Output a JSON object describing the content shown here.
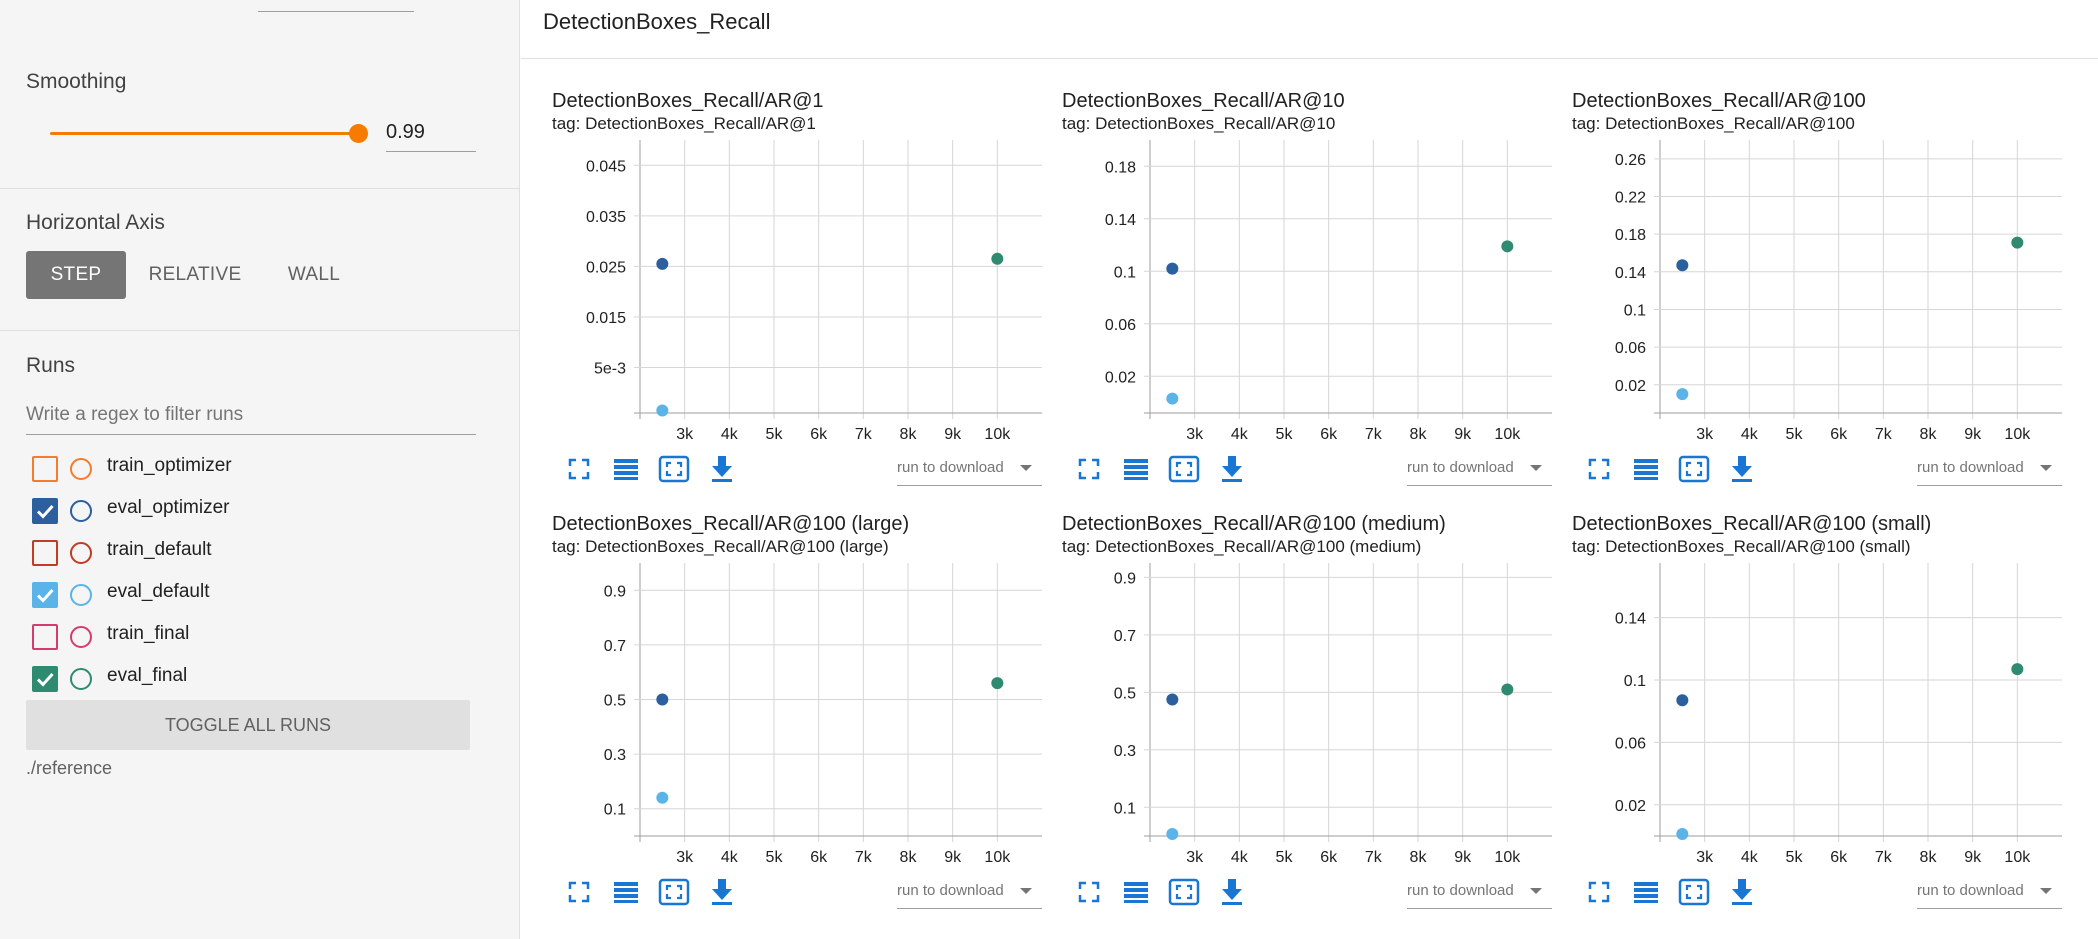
{
  "sidebar": {
    "smoothing": {
      "label": "Smoothing",
      "value": "0.99",
      "fraction": 0.99
    },
    "horizontal_axis": {
      "label": "Horizontal Axis",
      "options": [
        "STEP",
        "RELATIVE",
        "WALL"
      ],
      "selected": "STEP"
    },
    "runs": {
      "label": "Runs",
      "filter_placeholder": "Write a regex to filter runs",
      "items": [
        {
          "label": "train_optimizer",
          "checked": false,
          "color": "#f57c2b"
        },
        {
          "label": "eval_optimizer",
          "checked": true,
          "color": "#2c5f9e"
        },
        {
          "label": "train_default",
          "checked": false,
          "color": "#c23b22"
        },
        {
          "label": "eval_default",
          "checked": true,
          "color": "#5ab4e8"
        },
        {
          "label": "train_final",
          "checked": false,
          "color": "#d63b6f"
        },
        {
          "label": "eval_final",
          "checked": true,
          "color": "#2e8b72"
        }
      ],
      "toggle_all_label": "TOGGLE ALL RUNS",
      "reference": "./reference"
    }
  },
  "main": {
    "title": "DetectionBoxes_Recall",
    "download_placeholder": "run to download"
  },
  "chart_data": [
    {
      "type": "scatter",
      "title": "DetectionBoxes_Recall/AR@1",
      "tag": "tag: DetectionBoxes_Recall/AR@1",
      "xlim": [
        2000,
        11000
      ],
      "ylim": [
        -0.004,
        0.05
      ],
      "xticks": [
        3000,
        4000,
        5000,
        6000,
        7000,
        8000,
        9000,
        10000
      ],
      "xtick_labels": [
        "3k",
        "4k",
        "5k",
        "6k",
        "7k",
        "8k",
        "9k",
        "10k"
      ],
      "yticks": [
        0.005,
        0.015,
        0.025,
        0.035,
        0.045
      ],
      "ytick_labels": [
        "5e-3",
        "0.015",
        "0.025",
        "0.035",
        "0.045"
      ],
      "series": [
        {
          "name": "eval_optimizer",
          "color": "#2c5f9e",
          "points": [
            [
              2500,
              0.0255
            ]
          ]
        },
        {
          "name": "eval_default",
          "color": "#5ab4e8",
          "points": [
            [
              2500,
              -0.0035
            ]
          ]
        },
        {
          "name": "eval_final",
          "color": "#2e8b72",
          "points": [
            [
              10000,
              0.0265
            ]
          ]
        }
      ]
    },
    {
      "type": "scatter",
      "title": "DetectionBoxes_Recall/AR@10",
      "tag": "tag: DetectionBoxes_Recall/AR@10",
      "xlim": [
        2000,
        11000
      ],
      "ylim": [
        -0.008,
        0.2
      ],
      "xticks": [
        3000,
        4000,
        5000,
        6000,
        7000,
        8000,
        9000,
        10000
      ],
      "xtick_labels": [
        "3k",
        "4k",
        "5k",
        "6k",
        "7k",
        "8k",
        "9k",
        "10k"
      ],
      "yticks": [
        0.02,
        0.06,
        0.1,
        0.14,
        0.18
      ],
      "ytick_labels": [
        "0.02",
        "0.06",
        "0.1",
        "0.14",
        "0.18"
      ],
      "series": [
        {
          "name": "eval_optimizer",
          "color": "#2c5f9e",
          "points": [
            [
              2500,
              0.102
            ]
          ]
        },
        {
          "name": "eval_default",
          "color": "#5ab4e8",
          "points": [
            [
              2500,
              0.003
            ]
          ]
        },
        {
          "name": "eval_final",
          "color": "#2e8b72",
          "points": [
            [
              10000,
              0.119
            ]
          ]
        }
      ]
    },
    {
      "type": "scatter",
      "title": "DetectionBoxes_Recall/AR@100",
      "tag": "tag: DetectionBoxes_Recall/AR@100",
      "xlim": [
        2000,
        11000
      ],
      "ylim": [
        -0.01,
        0.28
      ],
      "xticks": [
        3000,
        4000,
        5000,
        6000,
        7000,
        8000,
        9000,
        10000
      ],
      "xtick_labels": [
        "3k",
        "4k",
        "5k",
        "6k",
        "7k",
        "8k",
        "9k",
        "10k"
      ],
      "yticks": [
        0.02,
        0.06,
        0.1,
        0.14,
        0.18,
        0.22,
        0.26
      ],
      "ytick_labels": [
        "0.02",
        "0.06",
        "0.1",
        "0.14",
        "0.18",
        "0.22",
        "0.26"
      ],
      "series": [
        {
          "name": "eval_optimizer",
          "color": "#2c5f9e",
          "points": [
            [
              2500,
              0.147
            ]
          ]
        },
        {
          "name": "eval_default",
          "color": "#5ab4e8",
          "points": [
            [
              2500,
              0.01
            ]
          ]
        },
        {
          "name": "eval_final",
          "color": "#2e8b72",
          "points": [
            [
              10000,
              0.171
            ]
          ]
        }
      ]
    },
    {
      "type": "scatter",
      "title": "DetectionBoxes_Recall/AR@100 (large)",
      "tag": "tag: DetectionBoxes_Recall/AR@100 (large)",
      "xlim": [
        2000,
        11000
      ],
      "ylim": [
        0,
        1.0
      ],
      "xticks": [
        3000,
        4000,
        5000,
        6000,
        7000,
        8000,
        9000,
        10000
      ],
      "xtick_labels": [
        "3k",
        "4k",
        "5k",
        "6k",
        "7k",
        "8k",
        "9k",
        "10k"
      ],
      "yticks": [
        0.1,
        0.3,
        0.5,
        0.7,
        0.9
      ],
      "ytick_labels": [
        "0.1",
        "0.3",
        "0.5",
        "0.7",
        "0.9"
      ],
      "series": [
        {
          "name": "eval_optimizer",
          "color": "#2c5f9e",
          "points": [
            [
              2500,
              0.5
            ]
          ]
        },
        {
          "name": "eval_default",
          "color": "#5ab4e8",
          "points": [
            [
              2500,
              0.14
            ]
          ]
        },
        {
          "name": "eval_final",
          "color": "#2e8b72",
          "points": [
            [
              10000,
              0.56
            ]
          ]
        }
      ]
    },
    {
      "type": "scatter",
      "title": "DetectionBoxes_Recall/AR@100 (medium)",
      "tag": "tag: DetectionBoxes_Recall/AR@100 (medium)",
      "xlim": [
        2000,
        11000
      ],
      "ylim": [
        0,
        0.95
      ],
      "xticks": [
        3000,
        4000,
        5000,
        6000,
        7000,
        8000,
        9000,
        10000
      ],
      "xtick_labels": [
        "3k",
        "4k",
        "5k",
        "6k",
        "7k",
        "8k",
        "9k",
        "10k"
      ],
      "yticks": [
        0.1,
        0.3,
        0.5,
        0.7,
        0.9
      ],
      "ytick_labels": [
        "0.1",
        "0.3",
        "0.5",
        "0.7",
        "0.9"
      ],
      "series": [
        {
          "name": "eval_optimizer",
          "color": "#2c5f9e",
          "points": [
            [
              2500,
              0.475
            ]
          ]
        },
        {
          "name": "eval_default",
          "color": "#5ab4e8",
          "points": [
            [
              2500,
              0.0
            ]
          ]
        },
        {
          "name": "eval_final",
          "color": "#2e8b72",
          "points": [
            [
              10000,
              0.51
            ]
          ]
        }
      ]
    },
    {
      "type": "scatter",
      "title": "DetectionBoxes_Recall/AR@100 (small)",
      "tag": "tag: DetectionBoxes_Recall/AR@100 (small)",
      "xlim": [
        2000,
        11000
      ],
      "ylim": [
        0,
        0.175
      ],
      "xticks": [
        3000,
        4000,
        5000,
        6000,
        7000,
        8000,
        9000,
        10000
      ],
      "xtick_labels": [
        "3k",
        "4k",
        "5k",
        "6k",
        "7k",
        "8k",
        "9k",
        "10k"
      ],
      "yticks": [
        0.02,
        0.06,
        0.1,
        0.14
      ],
      "ytick_labels": [
        "0.02",
        "0.06",
        "0.1",
        "0.14"
      ],
      "series": [
        {
          "name": "eval_optimizer",
          "color": "#2c5f9e",
          "points": [
            [
              2500,
              0.087
            ]
          ]
        },
        {
          "name": "eval_default",
          "color": "#5ab4e8",
          "points": [
            [
              2500,
              0.0
            ]
          ]
        },
        {
          "name": "eval_final",
          "color": "#2e8b72",
          "points": [
            [
              10000,
              0.107
            ]
          ]
        }
      ]
    }
  ]
}
